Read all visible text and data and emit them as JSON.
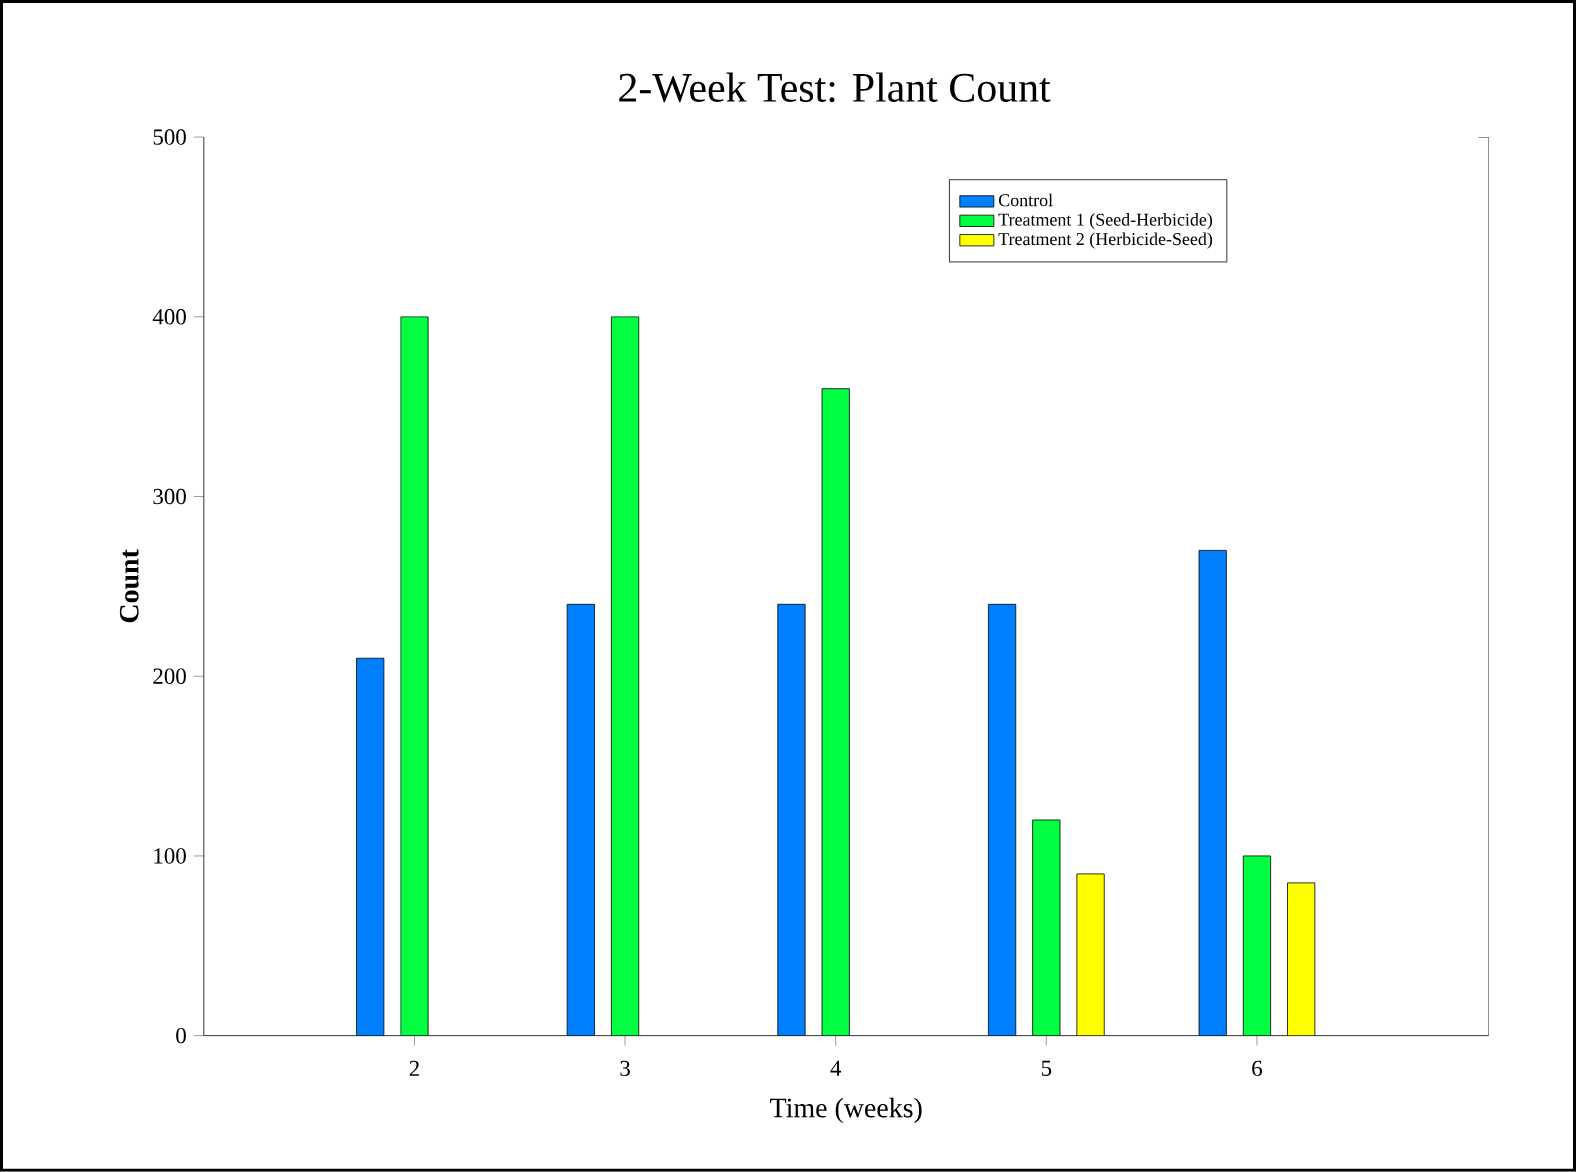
{
  "chart_data": {
    "type": "bar",
    "title": "2-Week Test: Plant Count",
    "xlabel": "Time (weeks)",
    "ylabel": "Count",
    "x": [
      2,
      3,
      4,
      5,
      6
    ],
    "xlim": [
      1,
      7.1
    ],
    "xticks": [
      2,
      3,
      4,
      5,
      6
    ],
    "ylim": [
      0,
      500
    ],
    "yticks": [
      0,
      100,
      200,
      300,
      400,
      500
    ],
    "legend": "top right",
    "series": [
      {
        "name": "Control",
        "color": "#0080ff",
        "values": [
          210,
          240,
          240,
          240,
          270
        ]
      },
      {
        "name": "Treatment 1 (Seed-Herbicide)",
        "color": "#00ff40",
        "values": [
          400,
          400,
          360,
          120,
          100
        ]
      },
      {
        "name": "Treatment 2 (Herbicide-Seed)",
        "color": "#ffff00",
        "values": [
          null,
          null,
          null,
          90,
          85
        ]
      }
    ]
  }
}
